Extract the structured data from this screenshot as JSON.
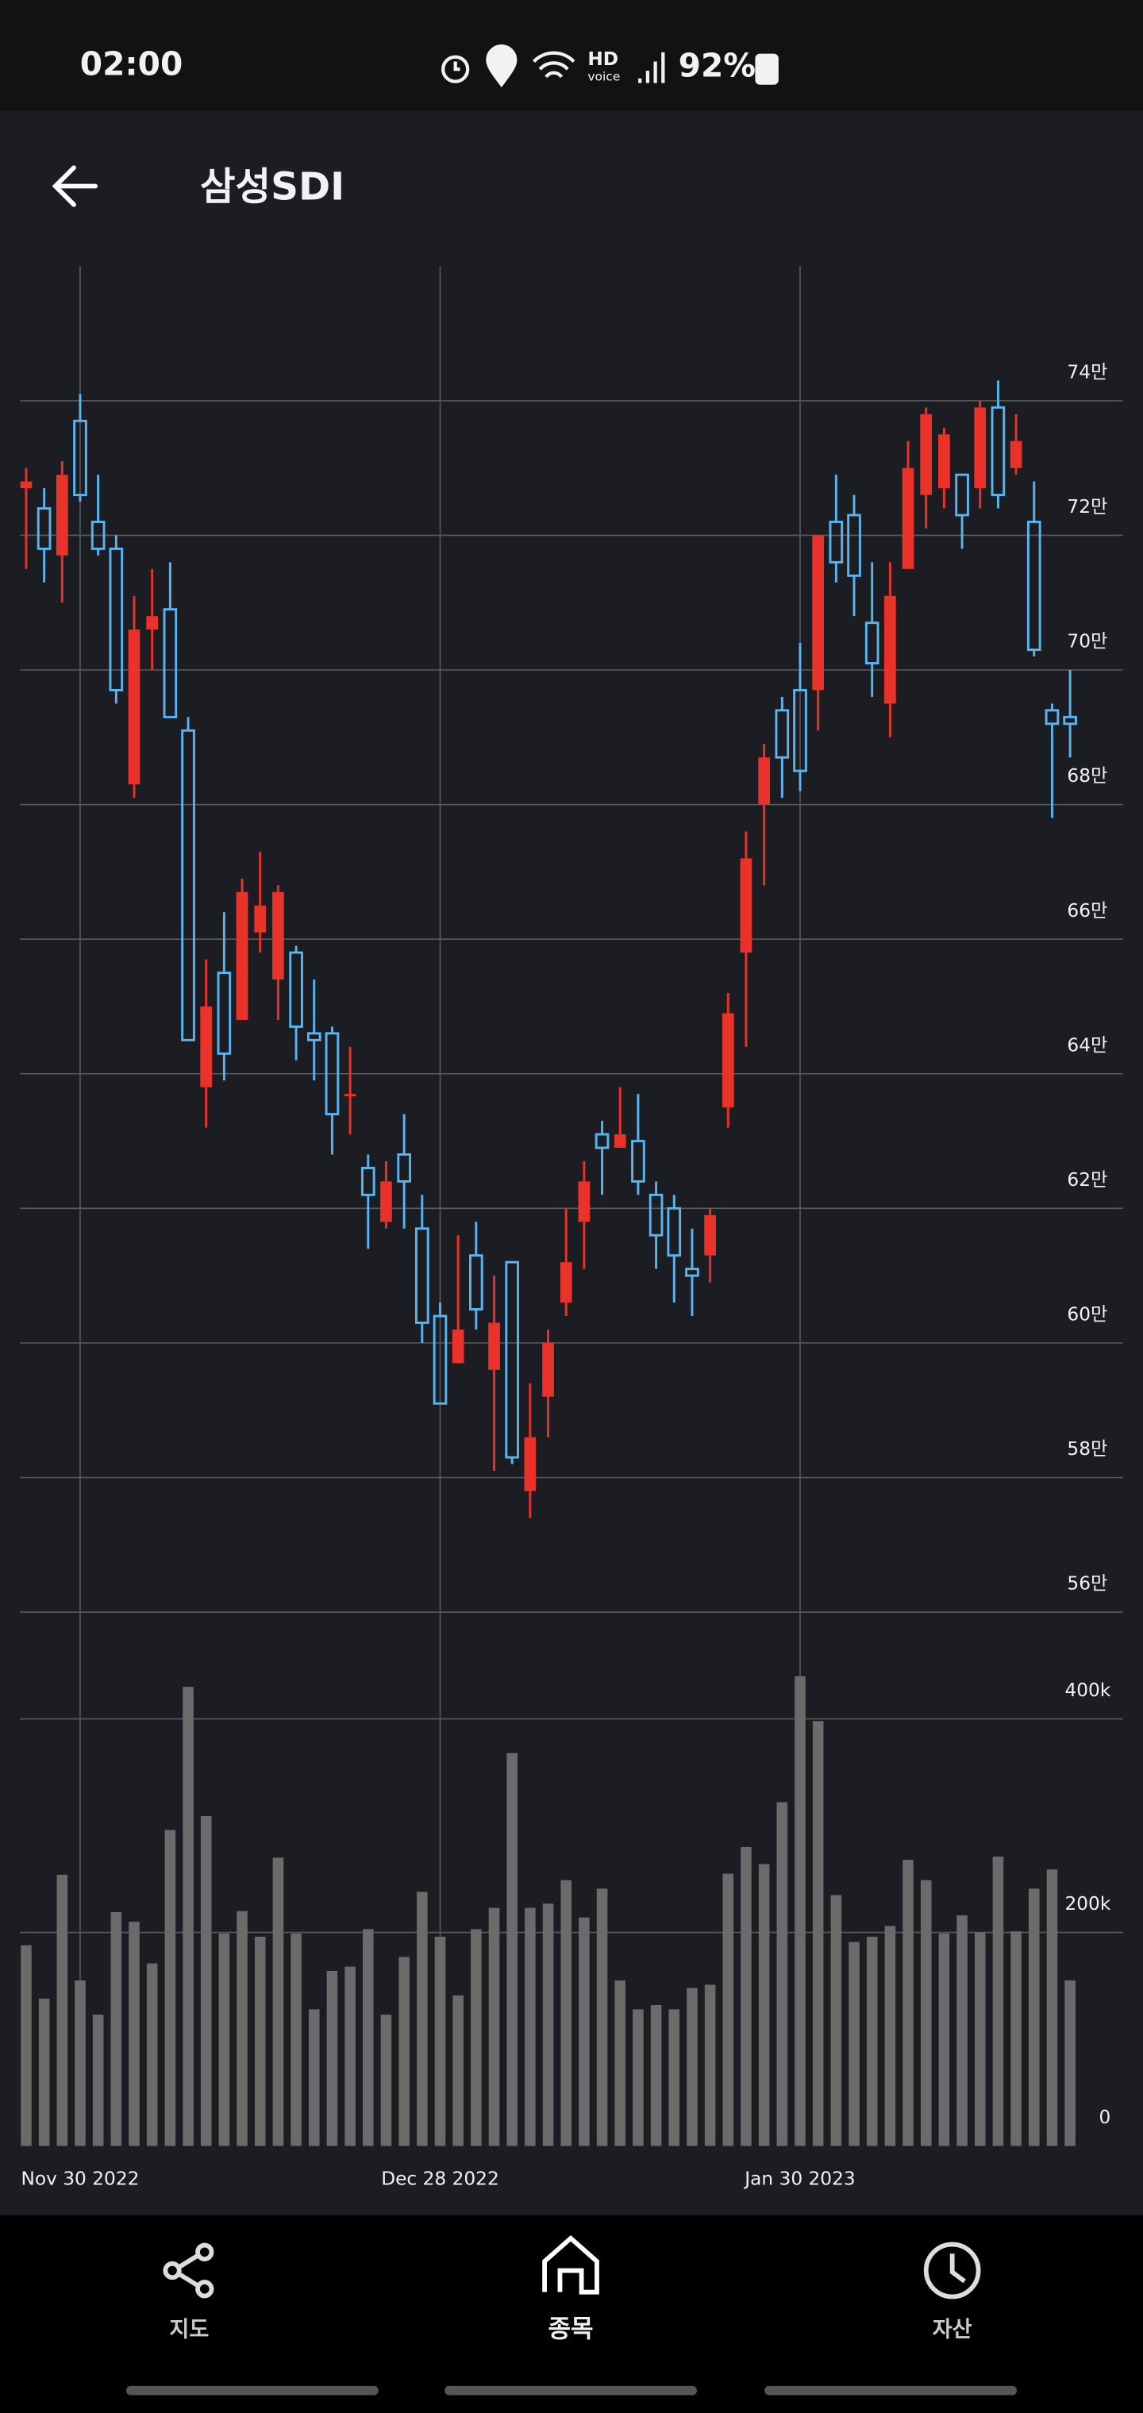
{
  "status_bar": {
    "time": "02:00",
    "hd": "HD",
    "voice": "voice",
    "battery": "92%"
  },
  "header": {
    "title": "삼성SDI"
  },
  "chart_data": {
    "type": "candlestick",
    "categories": [
      null,
      null,
      null,
      "Nov 30 2022",
      null,
      null,
      null,
      null,
      null,
      null,
      null,
      null,
      null,
      null,
      null,
      null,
      null,
      null,
      null,
      null,
      null,
      null,
      null,
      "Dec 28 2022",
      null,
      null,
      null,
      null,
      null,
      null,
      null,
      null,
      null,
      null,
      null,
      null,
      null,
      null,
      null,
      null,
      null,
      null,
      null,
      "Jan 30 2023",
      null,
      null,
      null,
      null,
      null,
      null,
      null,
      null,
      null,
      null,
      null,
      null,
      null,
      null,
      null
    ],
    "open": [
      727000,
      724000,
      717000,
      737000,
      722000,
      718000,
      683000,
      706000,
      709000,
      691000,
      638000,
      655000,
      648000,
      661000,
      654000,
      658000,
      646000,
      646000,
      637000,
      626000,
      618000,
      628000,
      617000,
      604000,
      597000,
      613000,
      596000,
      612000,
      578000,
      592000,
      606000,
      618000,
      631000,
      629000,
      630000,
      622000,
      620000,
      611000,
      613000,
      635000,
      658000,
      680000,
      694000,
      697000,
      697000,
      722000,
      723000,
      707000,
      695000,
      715000,
      726000,
      727000,
      729000,
      727000,
      739000,
      730000,
      722000,
      694000,
      693000
    ],
    "high": [
      730000,
      727000,
      731000,
      741000,
      729000,
      720000,
      711000,
      715000,
      716000,
      693000,
      657000,
      664000,
      669000,
      673000,
      668000,
      659000,
      654000,
      647000,
      644000,
      628000,
      627000,
      634000,
      622000,
      606000,
      616000,
      618000,
      610000,
      612000,
      594000,
      602000,
      620000,
      627000,
      633000,
      638000,
      637000,
      624000,
      622000,
      617000,
      620000,
      652000,
      676000,
      689000,
      696000,
      704000,
      720000,
      729000,
      726000,
      716000,
      716000,
      734000,
      739000,
      736000,
      729000,
      740000,
      743000,
      738000,
      728000,
      695000,
      700000
    ],
    "low": [
      715000,
      713000,
      710000,
      725000,
      717000,
      695000,
      681000,
      700000,
      693000,
      645000,
      632000,
      639000,
      648000,
      658000,
      648000,
      642000,
      639000,
      628000,
      631000,
      614000,
      617000,
      617000,
      600000,
      591000,
      597000,
      602000,
      581000,
      582000,
      574000,
      586000,
      604000,
      611000,
      622000,
      629000,
      622000,
      611000,
      606000,
      604000,
      609000,
      632000,
      644000,
      668000,
      681000,
      682000,
      691000,
      713000,
      708000,
      696000,
      690000,
      715000,
      721000,
      724000,
      718000,
      724000,
      724000,
      729000,
      702000,
      678000,
      687000
    ],
    "close": [
      728000,
      718000,
      729000,
      726000,
      718000,
      697000,
      706000,
      708000,
      693000,
      645000,
      650000,
      643000,
      667000,
      665000,
      667000,
      647000,
      645000,
      634000,
      637000,
      622000,
      624000,
      624000,
      603000,
      591000,
      602000,
      605000,
      603000,
      583000,
      586000,
      600000,
      612000,
      624000,
      629000,
      631000,
      624000,
      616000,
      613000,
      610000,
      619000,
      649000,
      672000,
      687000,
      687000,
      685000,
      720000,
      716000,
      714000,
      701000,
      711000,
      730000,
      738000,
      735000,
      723000,
      739000,
      726000,
      734000,
      703000,
      692000,
      692000
    ],
    "volume": [
      188000,
      138000,
      254000,
      155000,
      123000,
      219000,
      210000,
      171000,
      296000,
      430000,
      309000,
      199000,
      220000,
      196000,
      270000,
      199000,
      128000,
      164000,
      168000,
      203000,
      123000,
      177000,
      238000,
      196000,
      141000,
      203000,
      223000,
      368000,
      223000,
      227000,
      249000,
      214000,
      241000,
      155000,
      128000,
      132000,
      128000,
      148000,
      151000,
      255000,
      280000,
      264000,
      322000,
      440000,
      398000,
      235000,
      191000,
      196000,
      206000,
      268000,
      249000,
      199000,
      216000,
      200000,
      271000,
      201000,
      241000,
      259000,
      155000
    ],
    "ylim": [
      560000,
      760000
    ],
    "yticks": [
      {
        "value": 560000,
        "label": "56만"
      },
      {
        "value": 580000,
        "label": "58만"
      },
      {
        "value": 600000,
        "label": "60만"
      },
      {
        "value": 620000,
        "label": "62만"
      },
      {
        "value": 640000,
        "label": "64만"
      },
      {
        "value": 660000,
        "label": "66만"
      },
      {
        "value": 680000,
        "label": "68만"
      },
      {
        "value": 700000,
        "label": "70만"
      },
      {
        "value": 720000,
        "label": "72만"
      },
      {
        "value": 740000,
        "label": "74만"
      }
    ],
    "volume_ylim": [
      0,
      500000
    ],
    "volume_yticks": [
      0,
      {
        "value": 200000,
        "label": "200k"
      },
      {
        "value": 400000,
        "label": "400k"
      }
    ],
    "up_color": "#e8322a",
    "down_color": "#5ab4f0",
    "volume_color": "#6b6b6b",
    "grid": true
  },
  "nav": {
    "items": [
      {
        "label": "지도"
      },
      {
        "label": "종목"
      },
      {
        "label": "자산"
      }
    ]
  }
}
